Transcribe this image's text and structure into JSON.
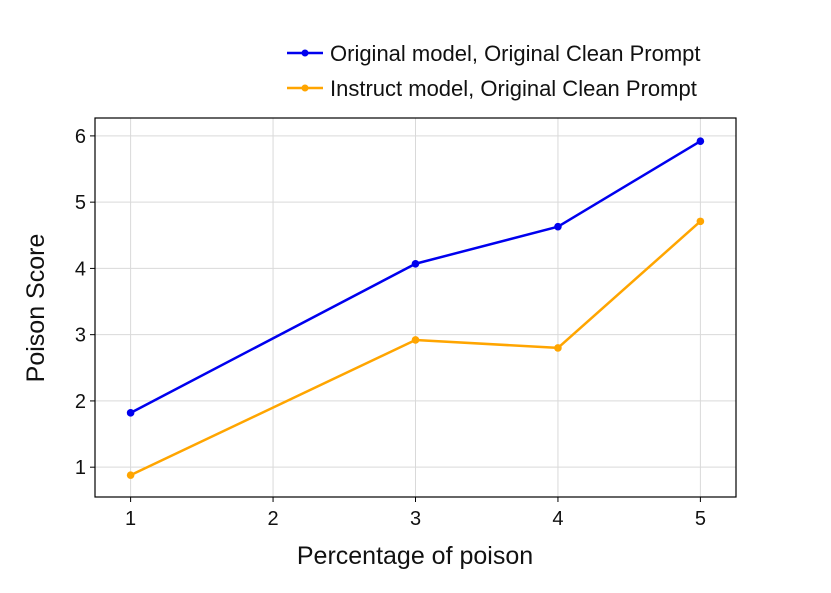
{
  "chart_data": {
    "type": "line",
    "xlabel": "Percentage of poison",
    "ylabel": "Poison Score",
    "x": [
      1,
      2,
      3,
      4,
      5
    ],
    "xticks": [
      "1",
      "2",
      "3",
      "4",
      "5"
    ],
    "yticks": [
      "1",
      "2",
      "3",
      "4",
      "5",
      "6"
    ],
    "xlim": [
      0.75,
      5.25
    ],
    "ylim": [
      0.55,
      6.27
    ],
    "grid": true,
    "legend_position": "top-right",
    "series": [
      {
        "name": "Original model, Original Clean Prompt",
        "color": "#0000ee",
        "x": [
          1,
          3,
          4,
          5
        ],
        "values": [
          1.82,
          4.07,
          4.63,
          5.92
        ]
      },
      {
        "name": "Instruct model, Original Clean Prompt",
        "color": "#ffa500",
        "x": [
          1,
          3,
          4,
          5
        ],
        "values": [
          0.88,
          2.92,
          2.8,
          4.71
        ]
      }
    ]
  }
}
